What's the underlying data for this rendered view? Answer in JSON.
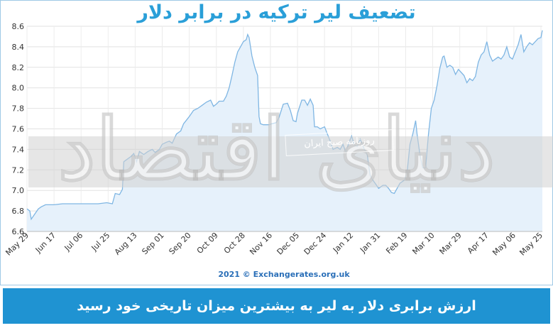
{
  "title": "تضعیف لیر ترکیه در برابر دلار",
  "footer_caption": "ارزش برابری دلار به لیر به بیشترین میزان تاریخی خود رسید",
  "watermark": {
    "main": "دنیای اقتصاد",
    "sub": "روزنامه صبح ایران"
  },
  "colors": {
    "accent": "#1f93d2",
    "title": "#2a9fd8",
    "line": "#7fb6e3",
    "fill": "#e6f1fb"
  },
  "chart_data": {
    "type": "area",
    "credit": "2021 © Exchangerates.org.uk",
    "xlabel": "",
    "ylabel": "",
    "ylim": [
      6.6,
      8.6
    ],
    "y_ticks": [
      6.6,
      6.8,
      7.0,
      7.2,
      7.4,
      7.6,
      7.8,
      8.0,
      8.2,
      8.4,
      8.6
    ],
    "x_tick_labels": [
      "May 29",
      "Jun 17",
      "Jul 06",
      "Jul 25",
      "Aug 13",
      "Sep 01",
      "Sep 20",
      "Oct 09",
      "Oct 28",
      "Nov 16",
      "Dec 05",
      "Dec 24",
      "Jan 12",
      "Jan 31",
      "Feb 19",
      "Mar 10",
      "Mar 29",
      "Apr 17",
      "May 06",
      "May 25"
    ],
    "x_tick_label_positions": [
      0,
      19,
      38,
      57,
      76,
      95,
      114,
      133,
      152,
      171,
      190,
      209,
      228,
      247,
      266,
      285,
      304,
      323,
      342,
      361
    ],
    "grid": true,
    "series": [
      {
        "name": "",
        "points": [
          [
            0,
            6.82
          ],
          [
            2,
            6.8
          ],
          [
            3,
            6.72
          ],
          [
            5,
            6.76
          ],
          [
            8,
            6.82
          ],
          [
            10,
            6.84
          ],
          [
            13,
            6.86
          ],
          [
            19,
            6.86
          ],
          [
            25,
            6.87
          ],
          [
            32,
            6.87
          ],
          [
            38,
            6.87
          ],
          [
            45,
            6.87
          ],
          [
            50,
            6.87
          ],
          [
            56,
            6.88
          ],
          [
            60,
            6.87
          ],
          [
            62,
            6.97
          ],
          [
            65,
            6.96
          ],
          [
            67,
            7.01
          ],
          [
            68,
            7.28
          ],
          [
            70,
            7.3
          ],
          [
            73,
            7.33
          ],
          [
            75,
            7.36
          ],
          [
            77,
            7.28
          ],
          [
            79,
            7.38
          ],
          [
            82,
            7.35
          ],
          [
            85,
            7.38
          ],
          [
            88,
            7.4
          ],
          [
            90,
            7.37
          ],
          [
            93,
            7.4
          ],
          [
            95,
            7.45
          ],
          [
            98,
            7.47
          ],
          [
            100,
            7.48
          ],
          [
            102,
            7.46
          ],
          [
            105,
            7.55
          ],
          [
            108,
            7.58
          ],
          [
            110,
            7.65
          ],
          [
            114,
            7.72
          ],
          [
            117,
            7.78
          ],
          [
            120,
            7.8
          ],
          [
            123,
            7.83
          ],
          [
            126,
            7.86
          ],
          [
            129,
            7.88
          ],
          [
            131,
            7.82
          ],
          [
            133,
            7.84
          ],
          [
            135,
            7.87
          ],
          [
            138,
            7.87
          ],
          [
            140,
            7.92
          ],
          [
            142,
            8.0
          ],
          [
            144,
            8.12
          ],
          [
            146,
            8.25
          ],
          [
            148,
            8.35
          ],
          [
            150,
            8.4
          ],
          [
            152,
            8.45
          ],
          [
            154,
            8.47
          ],
          [
            155,
            8.52
          ],
          [
            156,
            8.49
          ],
          [
            158,
            8.31
          ],
          [
            160,
            8.2
          ],
          [
            162,
            8.12
          ],
          [
            163,
            7.72
          ],
          [
            164,
            7.65
          ],
          [
            166,
            7.64
          ],
          [
            170,
            7.64
          ],
          [
            172,
            7.65
          ],
          [
            175,
            7.66
          ],
          [
            177,
            7.71
          ],
          [
            180,
            7.84
          ],
          [
            183,
            7.85
          ],
          [
            185,
            7.78
          ],
          [
            187,
            7.68
          ],
          [
            189,
            7.67
          ],
          [
            190,
            7.75
          ],
          [
            193,
            7.88
          ],
          [
            195,
            7.88
          ],
          [
            197,
            7.83
          ],
          [
            199,
            7.89
          ],
          [
            201,
            7.83
          ],
          [
            202,
            7.62
          ],
          [
            204,
            7.62
          ],
          [
            206,
            7.6
          ],
          [
            209,
            7.62
          ],
          [
            211,
            7.55
          ],
          [
            213,
            7.48
          ],
          [
            215,
            7.4
          ],
          [
            218,
            7.42
          ],
          [
            220,
            7.4
          ],
          [
            222,
            7.45
          ],
          [
            224,
            7.37
          ],
          [
            226,
            7.46
          ],
          [
            228,
            7.53
          ],
          [
            230,
            7.44
          ],
          [
            232,
            7.43
          ],
          [
            234,
            7.5
          ],
          [
            237,
            7.4
          ],
          [
            239,
            7.35
          ],
          [
            241,
            7.15
          ],
          [
            243,
            7.1
          ],
          [
            245,
            7.06
          ],
          [
            247,
            7.02
          ],
          [
            250,
            7.05
          ],
          [
            252,
            7.05
          ],
          [
            254,
            7.02
          ],
          [
            256,
            6.98
          ],
          [
            258,
            6.97
          ],
          [
            260,
            7.02
          ],
          [
            262,
            7.07
          ],
          [
            265,
            7.1
          ],
          [
            267,
            7.18
          ],
          [
            269,
            7.45
          ],
          [
            271,
            7.55
          ],
          [
            273,
            7.68
          ],
          [
            274,
            7.55
          ],
          [
            276,
            7.35
          ],
          [
            278,
            7.22
          ],
          [
            280,
            7.22
          ],
          [
            282,
            7.55
          ],
          [
            284,
            7.8
          ],
          [
            286,
            7.88
          ],
          [
            288,
            8.02
          ],
          [
            290,
            8.19
          ],
          [
            292,
            8.3
          ],
          [
            293,
            8.31
          ],
          [
            295,
            8.2
          ],
          [
            297,
            8.22
          ],
          [
            299,
            8.2
          ],
          [
            301,
            8.13
          ],
          [
            303,
            8.18
          ],
          [
            305,
            8.15
          ],
          [
            307,
            8.12
          ],
          [
            309,
            8.05
          ],
          [
            311,
            8.09
          ],
          [
            313,
            8.07
          ],
          [
            315,
            8.11
          ],
          [
            317,
            8.25
          ],
          [
            319,
            8.32
          ],
          [
            321,
            8.35
          ],
          [
            323,
            8.45
          ],
          [
            325,
            8.32
          ],
          [
            327,
            8.26
          ],
          [
            329,
            8.28
          ],
          [
            331,
            8.3
          ],
          [
            333,
            8.28
          ],
          [
            335,
            8.32
          ],
          [
            337,
            8.4
          ],
          [
            339,
            8.3
          ],
          [
            341,
            8.28
          ],
          [
            343,
            8.35
          ],
          [
            345,
            8.42
          ],
          [
            347,
            8.52
          ],
          [
            349,
            8.35
          ],
          [
            351,
            8.4
          ],
          [
            353,
            8.44
          ],
          [
            355,
            8.42
          ],
          [
            357,
            8.45
          ],
          [
            359,
            8.48
          ],
          [
            361,
            8.49
          ],
          [
            362,
            8.56
          ]
        ]
      }
    ]
  }
}
